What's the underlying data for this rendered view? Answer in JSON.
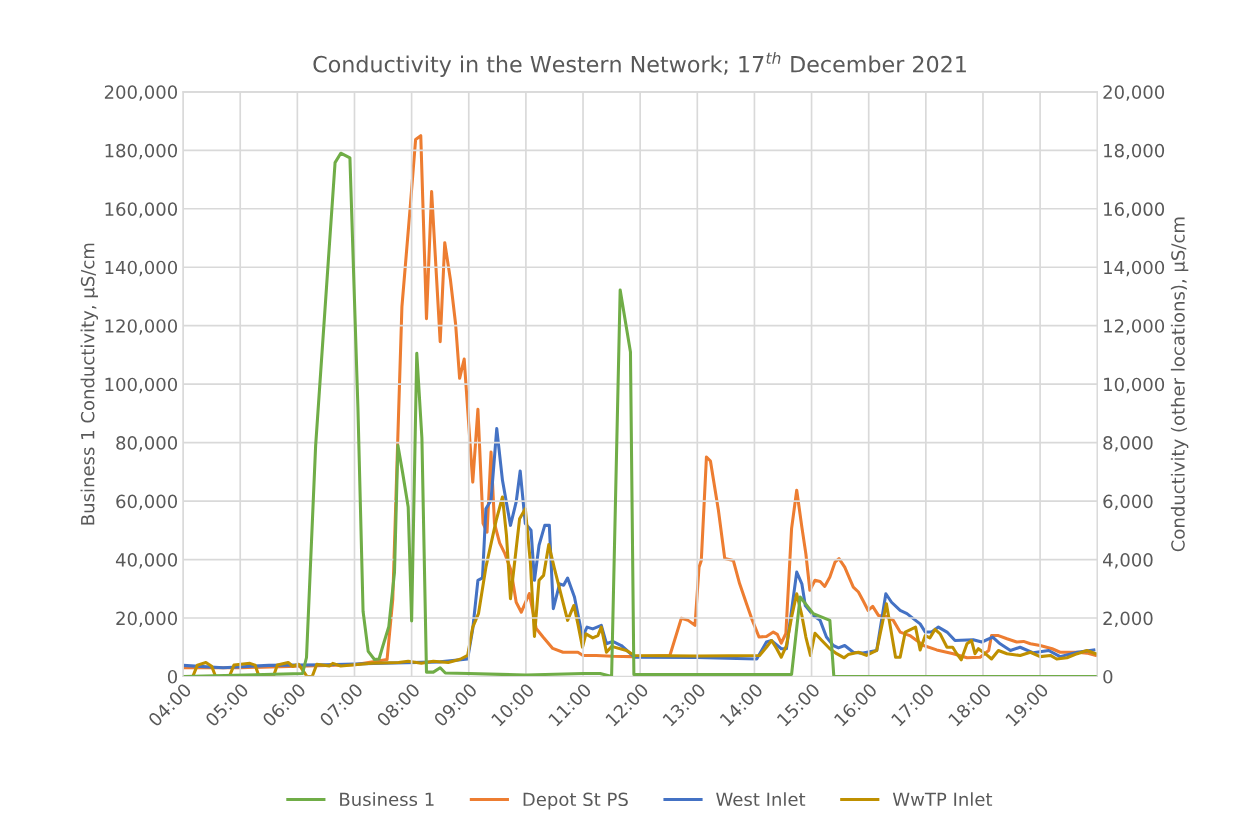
{
  "chart_data": {
    "type": "line",
    "title": "Conductivity in the Western Network; 17$^{th}$ December 2021",
    "ylabel": "Business 1 Conductivity, µS/cm",
    "y2label": "Conductivity (other locations), µS/cm",
    "xlim": [
      4,
      20
    ],
    "xticks": [
      {
        "value": 4,
        "label": "04:00"
      },
      {
        "value": 5,
        "label": "05:00"
      },
      {
        "value": 6,
        "label": "06:00"
      },
      {
        "value": 7,
        "label": "07:00"
      },
      {
        "value": 8,
        "label": "08:00"
      },
      {
        "value": 9,
        "label": "09:00"
      },
      {
        "value": 10,
        "label": "10:00"
      },
      {
        "value": 11,
        "label": "11:00"
      },
      {
        "value": 12,
        "label": "12:00"
      },
      {
        "value": 13,
        "label": "13:00"
      },
      {
        "value": 14,
        "label": "14:00"
      },
      {
        "value": 15,
        "label": "15:00"
      },
      {
        "value": 16,
        "label": "16:00"
      },
      {
        "value": 17,
        "label": "17:00"
      },
      {
        "value": 18,
        "label": "18:00"
      },
      {
        "value": 19,
        "label": "19:00"
      }
    ],
    "ylim": [
      0,
      200000
    ],
    "yticks": [
      {
        "value": 0,
        "label": "0"
      },
      {
        "value": 20000,
        "label": "20,000"
      },
      {
        "value": 40000,
        "label": "40,000"
      },
      {
        "value": 60000,
        "label": "60,000"
      },
      {
        "value": 80000,
        "label": "80,000"
      },
      {
        "value": 100000,
        "label": "100,000"
      },
      {
        "value": 120000,
        "label": "120,000"
      },
      {
        "value": 140000,
        "label": "140,000"
      },
      {
        "value": 160000,
        "label": "160,000"
      },
      {
        "value": 180000,
        "label": "180,000"
      },
      {
        "value": 200000,
        "label": "200,000"
      }
    ],
    "y2lim": [
      0,
      20000
    ],
    "y2ticks": [
      {
        "value": 0,
        "label": "0"
      },
      {
        "value": 2000,
        "label": "2,000"
      },
      {
        "value": 4000,
        "label": "4,000"
      },
      {
        "value": 6000,
        "label": "6,000"
      },
      {
        "value": 8000,
        "label": "8,000"
      },
      {
        "value": 10000,
        "label": "10,000"
      },
      {
        "value": 12000,
        "label": "12,000"
      },
      {
        "value": 14000,
        "label": "14,000"
      },
      {
        "value": 16000,
        "label": "16,000"
      },
      {
        "value": 18000,
        "label": "18,000"
      },
      {
        "value": 20000,
        "label": "20,000"
      }
    ],
    "grid": true,
    "legend": "bottom",
    "marker": "none",
    "line_style": "solid",
    "series": [
      {
        "name": "Business 1",
        "color": "#70ad47",
        "x": [
          4,
          6.09,
          6.16,
          6.32,
          6.66,
          6.76,
          6.92,
          7.06,
          7.15,
          7.24,
          7.35,
          7.43,
          7.49,
          7.6,
          7.7,
          7.76,
          7.84,
          7.94,
          8.0,
          8.09,
          8.18,
          8.26,
          8.38,
          8.5,
          8.59,
          9.0,
          10.0,
          11.0,
          11.3,
          11.5,
          11.65,
          11.83,
          11.89,
          14.65,
          14.8,
          15.03,
          15.32,
          15.39,
          20
        ],
        "values": [
          0,
          1000,
          6500,
          79000,
          175800,
          179000,
          177400,
          92000,
          22300,
          8600,
          5800,
          6000,
          10000,
          17000,
          35600,
          79000,
          70000,
          58000,
          19000,
          110600,
          81500,
          1500,
          1500,
          3000,
          1200,
          1000,
          500,
          1000,
          1000,
          0,
          132200,
          111000,
          700,
          700,
          27200,
          21500,
          19200,
          0,
          0
        ]
      },
      {
        "name": "Depot St PS",
        "color": "#ed7d31",
        "axis": "y2",
        "x": [
          4,
          5,
          6,
          7,
          7.57,
          7.67,
          7.83,
          7.97,
          8.07,
          8.16,
          8.26,
          8.35,
          8.5,
          8.58,
          8.68,
          8.77,
          8.84,
          8.92,
          9.07,
          9.16,
          9.25,
          9.32,
          9.39,
          9.45,
          9.54,
          9.63,
          9.74,
          9.83,
          9.92,
          10.06,
          10.18,
          10.3,
          10.47,
          10.65,
          10.91,
          11.0,
          11.23,
          11.52,
          11.87,
          12.52,
          12.72,
          12.84,
          12.96,
          13.03,
          13.07,
          13.16,
          13.23,
          13.37,
          13.48,
          13.63,
          13.74,
          13.86,
          13.95,
          14.08,
          14.21,
          14.33,
          14.4,
          14.47,
          14.55,
          14.65,
          14.74,
          14.83,
          14.9,
          14.97,
          15.06,
          15.15,
          15.23,
          15.32,
          15.41,
          15.48,
          15.58,
          15.73,
          15.82,
          15.9,
          15.99,
          16.07,
          16.17,
          16.31,
          16.43,
          16.55,
          16.72,
          16.96,
          17.19,
          17.48,
          17.72,
          17.95,
          18.1,
          18.15,
          18.27,
          18.42,
          18.59,
          18.71,
          18.83,
          19.0,
          19.21,
          19.35,
          19.65,
          19.82,
          19.97
        ],
        "values": [
          300,
          300,
          350,
          400,
          580,
          2640,
          12640,
          15930,
          18370,
          18500,
          12240,
          16590,
          11450,
          14840,
          13560,
          12050,
          10200,
          10860,
          6650,
          9140,
          5240,
          4940,
          7680,
          5240,
          4570,
          4210,
          3630,
          2540,
          2200,
          2840,
          1640,
          1350,
          960,
          830,
          830,
          720,
          720,
          690,
          680,
          720,
          1990,
          1920,
          1750,
          3740,
          3970,
          7510,
          7370,
          5680,
          4040,
          3970,
          3180,
          2500,
          1990,
          1350,
          1370,
          1520,
          1440,
          1140,
          1470,
          5060,
          6370,
          5110,
          4200,
          2950,
          3290,
          3250,
          3080,
          3400,
          3910,
          4030,
          3740,
          3060,
          2890,
          2600,
          2260,
          2400,
          2090,
          2050,
          1920,
          1520,
          1400,
          1060,
          910,
          780,
          640,
          660,
          890,
          1400,
          1400,
          1290,
          1180,
          1200,
          1120,
          1060,
          950,
          830,
          830,
          800,
          720
        ]
      },
      {
        "name": "West Inlet",
        "color": "#4472c4",
        "axis": "y2",
        "x": [
          4,
          4.7,
          5.5,
          6.5,
          7.5,
          8.5,
          8.98,
          9.07,
          9.16,
          9.24,
          9.3,
          9.39,
          9.49,
          9.59,
          9.73,
          9.83,
          9.9,
          9.99,
          10.09,
          10.15,
          10.23,
          10.33,
          10.41,
          10.48,
          10.59,
          10.66,
          10.73,
          10.85,
          10.99,
          11.07,
          11.17,
          11.32,
          11.41,
          11.52,
          11.67,
          11.9,
          13.0,
          14.04,
          14.21,
          14.3,
          14.47,
          14.56,
          14.65,
          14.74,
          14.83,
          14.89,
          15.03,
          15.15,
          15.26,
          15.38,
          15.47,
          15.58,
          15.73,
          15.9,
          16.14,
          16.3,
          16.4,
          16.55,
          16.67,
          16.82,
          16.9,
          16.99,
          17.1,
          17.22,
          17.37,
          17.51,
          17.83,
          17.98,
          18.17,
          18.3,
          18.48,
          18.65,
          18.88,
          19.15,
          19.35,
          19.65,
          19.94
        ],
        "values": [
          380,
          300,
          380,
          400,
          450,
          500,
          600,
          1630,
          3290,
          3370,
          5740,
          6030,
          8480,
          6710,
          5170,
          5970,
          7030,
          5230,
          5000,
          3290,
          4490,
          5170,
          5170,
          2320,
          3170,
          3120,
          3370,
          2720,
          1350,
          1690,
          1630,
          1750,
          1120,
          1200,
          1060,
          660,
          650,
          600,
          1180,
          1230,
          950,
          950,
          2260,
          3570,
          3170,
          2430,
          2090,
          1920,
          1350,
          1060,
          980,
          1060,
          830,
          800,
          890,
          2830,
          2540,
          2260,
          2150,
          1920,
          1800,
          1520,
          1520,
          1690,
          1520,
          1230,
          1260,
          1180,
          1350,
          1120,
          890,
          1000,
          810,
          890,
          680,
          830,
          910
        ]
      },
      {
        "name": "WwTP Inlet",
        "color": "#bf9000",
        "axis": "y2",
        "x": [
          4.0,
          4.17,
          4.25,
          4.4,
          4.5,
          4.57,
          4.81,
          4.89,
          5.17,
          5.26,
          5.33,
          5.58,
          5.65,
          5.84,
          5.92,
          6.02,
          6.09,
          6.17,
          6.26,
          6.34,
          6.56,
          6.62,
          6.76,
          7.3,
          7.77,
          7.94,
          8.17,
          8.38,
          8.64,
          8.85,
          8.98,
          9.07,
          9.17,
          9.3,
          9.48,
          9.59,
          9.66,
          9.73,
          9.83,
          9.89,
          9.99,
          10.08,
          10.15,
          10.23,
          10.31,
          10.4,
          10.5,
          10.62,
          10.73,
          10.84,
          10.91,
          10.99,
          11.05,
          11.17,
          11.26,
          11.32,
          11.41,
          11.5,
          11.76,
          11.9,
          13.0,
          14.09,
          14.21,
          14.3,
          14.39,
          14.47,
          14.56,
          14.65,
          14.74,
          14.83,
          14.9,
          14.98,
          15.06,
          15.18,
          15.32,
          15.44,
          15.57,
          15.64,
          15.82,
          15.96,
          16.14,
          16.31,
          16.47,
          16.55,
          16.64,
          16.82,
          16.9,
          16.99,
          17.07,
          17.16,
          17.25,
          17.37,
          17.47,
          17.54,
          17.62,
          17.72,
          17.8,
          17.86,
          17.92,
          18.04,
          18.15,
          18.27,
          18.42,
          18.65,
          18.83,
          19.0,
          19.18,
          19.29,
          19.47,
          19.65,
          19.82,
          19.97
        ],
        "values": [
          0,
          0,
          390,
          480,
          350,
          0,
          0,
          390,
          450,
          390,
          0,
          0,
          390,
          480,
          350,
          420,
          230,
          0,
          0,
          420,
          360,
          450,
          360,
          450,
          480,
          520,
          450,
          520,
          480,
          590,
          720,
          1690,
          2150,
          3740,
          5340,
          6140,
          4830,
          2660,
          4370,
          5400,
          5740,
          3860,
          1370,
          3290,
          3460,
          4510,
          3690,
          2770,
          1920,
          2430,
          1800,
          1000,
          1460,
          1320,
          1400,
          1690,
          830,
          1030,
          890,
          720,
          700,
          720,
          1000,
          1230,
          950,
          660,
          1060,
          2030,
          2830,
          2090,
          1350,
          720,
          1480,
          1230,
          950,
          780,
          640,
          750,
          830,
          720,
          890,
          2490,
          660,
          660,
          1520,
          1690,
          910,
          1400,
          1320,
          1610,
          1460,
          1000,
          1000,
          780,
          570,
          1120,
          1230,
          780,
          950,
          780,
          600,
          890,
          780,
          720,
          830,
          680,
          720,
          600,
          640,
          780,
          890,
          780
        ]
      }
    ]
  }
}
